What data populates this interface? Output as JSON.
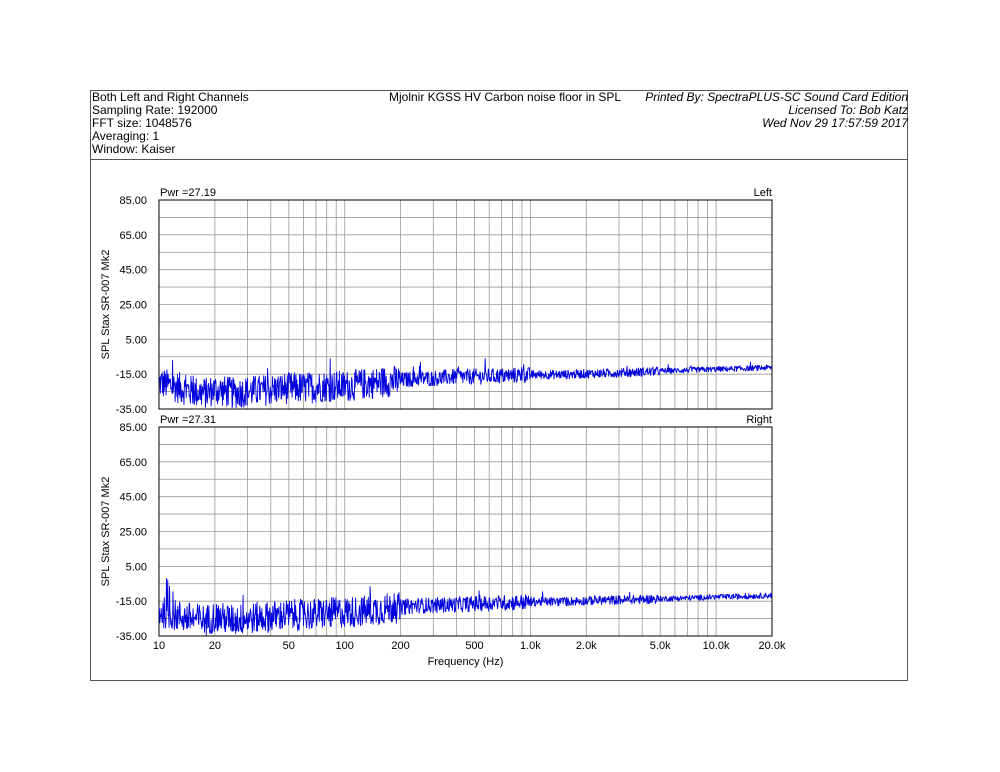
{
  "header": {
    "left_lines": [
      "Both Left and Right Channels",
      "Sampling Rate: 192000",
      "FFT size: 1048576",
      "Averaging: 1",
      "Window: Kaiser"
    ],
    "title": "Mjolnir KGSS HV Carbon noise floor in SPL",
    "right_lines": [
      "Printed By: SpectraPLUS-SC Sound Card Edition",
      "Licensed To: Bob Katz",
      "Wed Nov 29 17:57:59 2017"
    ]
  },
  "colors": {
    "trace": "#0000dd",
    "grid": "#999999",
    "axis": "#000000"
  },
  "chart_data": [
    {
      "type": "line",
      "channel": "Left",
      "pwr_label": "Pwr =27.19",
      "ylabel": "SPL Stax SR-007 Mk2",
      "xlabel": "",
      "xscale": "log",
      "xlim": [
        10,
        20000
      ],
      "ylim": [
        -35,
        85
      ],
      "yticks": [
        "85.00",
        "65.00",
        "45.00",
        "25.00",
        "5.00",
        "-15.00",
        "-35.00"
      ],
      "series": [
        {
          "x": [
            10,
            12,
            15,
            18,
            20,
            25,
            30,
            40,
            50,
            60,
            80,
            100,
            120,
            150,
            180,
            200,
            250,
            300,
            400,
            500,
            700,
            1000,
            1500,
            2000,
            3000,
            5000,
            7000,
            10000,
            15000,
            20000
          ],
          "values": [
            -19,
            -21,
            -24,
            -25,
            -23,
            -25,
            -24,
            -23,
            -22,
            -22,
            -21,
            -21,
            -20,
            -19,
            -18,
            -18,
            -17,
            -17,
            -16,
            -16,
            -15.5,
            -15,
            -15,
            -14.5,
            -14,
            -13,
            -12.5,
            -12,
            -11.5,
            -11
          ]
        }
      ]
    },
    {
      "type": "line",
      "channel": "Right",
      "pwr_label": "Pwr =27.31",
      "ylabel": "SPL Stax SR-007 Mk2",
      "xlabel": "Frequency (Hz)",
      "xscale": "log",
      "xlim": [
        10,
        20000
      ],
      "ylim": [
        -35,
        85
      ],
      "yticks": [
        "85.00",
        "65.00",
        "45.00",
        "25.00",
        "5.00",
        "-15.00",
        "-35.00"
      ],
      "xticks": [
        {
          "value": 10,
          "label": "10"
        },
        {
          "value": 20,
          "label": "20"
        },
        {
          "value": 50,
          "label": "50"
        },
        {
          "value": 100,
          "label": "100"
        },
        {
          "value": 200,
          "label": "200"
        },
        {
          "value": 500,
          "label": "500"
        },
        {
          "value": 1000,
          "label": "1.0k"
        },
        {
          "value": 2000,
          "label": "2.0k"
        },
        {
          "value": 5000,
          "label": "5.0k"
        },
        {
          "value": 10000,
          "label": "10.0k"
        },
        {
          "value": 20000,
          "label": "20.0k"
        }
      ],
      "series": [
        {
          "x": [
            10,
            12,
            15,
            18,
            20,
            25,
            30,
            40,
            50,
            60,
            80,
            100,
            120,
            150,
            180,
            200,
            250,
            300,
            400,
            500,
            700,
            1000,
            1500,
            2000,
            3000,
            5000,
            7000,
            10000,
            15000,
            20000
          ],
          "values": [
            -20,
            -22,
            -24,
            -25,
            -23,
            -25,
            -24,
            -23,
            -22,
            -22,
            -21,
            -20.5,
            -20,
            -19,
            -18,
            -18,
            -17,
            -17,
            -16.5,
            -16,
            -15.5,
            -15,
            -15,
            -14.5,
            -14,
            -13.5,
            -13,
            -12.5,
            -12,
            -11.5
          ]
        }
      ]
    }
  ]
}
